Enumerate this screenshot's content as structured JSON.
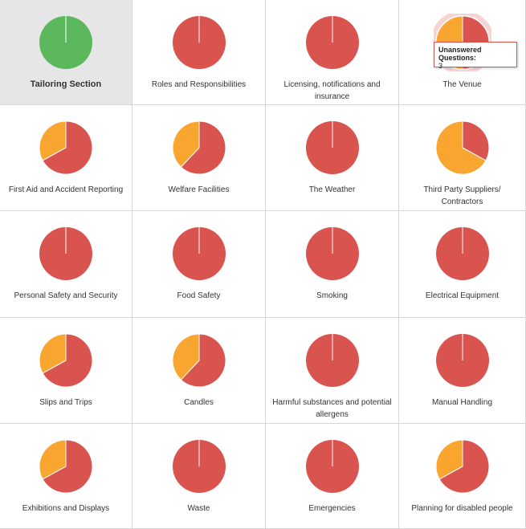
{
  "tiles": [
    {
      "label": "Tailoring Section",
      "selected": true,
      "values": [
        100
      ],
      "colors": [
        "#5cb85c"
      ]
    },
    {
      "label": "Roles and Responsibilities",
      "values": [
        100
      ],
      "colors": [
        "#d9534f"
      ]
    },
    {
      "label": "Licensing, notifications and insurance",
      "values": [
        100
      ],
      "colors": [
        "#d9534f"
      ]
    },
    {
      "label": "The Venue",
      "hovered": true,
      "values": [
        50,
        50
      ],
      "colors": [
        "#d9534f",
        "#f9a631"
      ]
    },
    {
      "label": "First Aid and Accident Reporting",
      "values": [
        67,
        33
      ],
      "colors": [
        "#d9534f",
        "#f9a631"
      ]
    },
    {
      "label": "Welfare Facilities",
      "values": [
        62,
        38
      ],
      "colors": [
        "#d9534f",
        "#f9a631"
      ]
    },
    {
      "label": "The Weather",
      "values": [
        100
      ],
      "colors": [
        "#d9534f"
      ]
    },
    {
      "label": "Third Party Suppliers/ Contractors",
      "values": [
        33,
        67
      ],
      "colors": [
        "#d9534f",
        "#f9a631"
      ]
    },
    {
      "label": "Personal Safety and Security",
      "values": [
        100
      ],
      "colors": [
        "#d9534f"
      ]
    },
    {
      "label": "Food Safety",
      "values": [
        100
      ],
      "colors": [
        "#d9534f"
      ]
    },
    {
      "label": "Smoking",
      "values": [
        100
      ],
      "colors": [
        "#d9534f"
      ]
    },
    {
      "label": "Electrical Equipment",
      "values": [
        100
      ],
      "colors": [
        "#d9534f"
      ]
    },
    {
      "label": "Slips and Trips",
      "values": [
        67,
        33
      ],
      "colors": [
        "#d9534f",
        "#f9a631"
      ]
    },
    {
      "label": "Candles",
      "values": [
        62,
        38
      ],
      "colors": [
        "#d9534f",
        "#f9a631"
      ]
    },
    {
      "label": "Harmful substances and potential allergens",
      "values": [
        100
      ],
      "colors": [
        "#d9534f"
      ]
    },
    {
      "label": "Manual Handling",
      "values": [
        100
      ],
      "colors": [
        "#d9534f"
      ]
    },
    {
      "label": "Exhibitions and Displays",
      "values": [
        67,
        33
      ],
      "colors": [
        "#d9534f",
        "#f9a631"
      ]
    },
    {
      "label": "Waste",
      "values": [
        100
      ],
      "colors": [
        "#d9534f"
      ]
    },
    {
      "label": "Emergencies",
      "values": [
        100
      ],
      "colors": [
        "#d9534f"
      ]
    },
    {
      "label": "Planning for disabled people",
      "values": [
        67,
        33
      ],
      "colors": [
        "#d9534f",
        "#f9a631"
      ]
    }
  ],
  "tooltip": {
    "label": "Unanswered Questions:",
    "value": 3
  }
}
